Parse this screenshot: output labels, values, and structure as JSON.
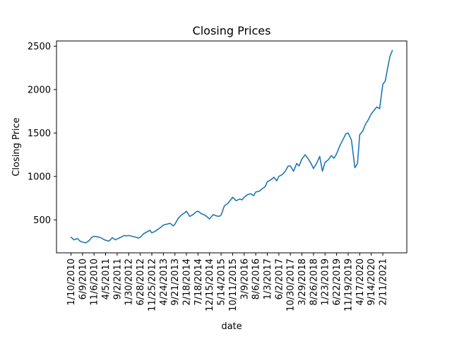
{
  "chart_data": {
    "type": "line",
    "title": "Closing Prices",
    "xlabel": "date",
    "ylabel": "Closing Price",
    "ylim": [
      120,
      2560
    ],
    "yticks": [
      500,
      1000,
      1500,
      2000,
      2500
    ],
    "xticks": [
      "1/10/2010",
      "6/9/2010",
      "11/6/2010",
      "4/5/2011",
      "9/2/2011",
      "1/30/2012",
      "6/28/2012",
      "11/25/2012",
      "4/24/2013",
      "9/21/2013",
      "2/18/2014",
      "7/18/2014",
      "12/15/2014",
      "5/14/2015",
      "10/11/2015",
      "3/9/2016",
      "8/6/2016",
      "1/3/2017",
      "6/2/2017",
      "10/30/2017",
      "3/29/2018",
      "8/26/2018",
      "1/23/2019",
      "6/22/2019",
      "11/19/2019",
      "4/17/2020",
      "9/14/2020",
      "2/11/2021"
    ],
    "grid": false,
    "series": [
      {
        "color": "#1f77b4",
        "x": [
          "1/10/2010",
          "2/20/2010",
          "4/1/2010",
          "5/15/2010",
          "6/9/2010",
          "7/20/2010",
          "9/1/2010",
          "10/10/2010",
          "11/6/2010",
          "12/20/2010",
          "2/1/2011",
          "3/10/2011",
          "4/5/2011",
          "5/20/2011",
          "7/1/2011",
          "8/10/2011",
          "9/2/2011",
          "10/20/2011",
          "12/1/2011",
          "1/5/2012",
          "1/30/2012",
          "3/15/2012",
          "5/1/2012",
          "6/1/2012",
          "6/28/2012",
          "8/10/2012",
          "9/20/2012",
          "11/1/2012",
          "11/25/2012",
          "1/10/2013",
          "2/20/2013",
          "3/30/2013",
          "4/24/2013",
          "6/10/2013",
          "7/20/2013",
          "9/1/2013",
          "9/21/2013",
          "11/5/2013",
          "12/20/2013",
          "1/25/2014",
          "2/18/2014",
          "4/1/2014",
          "5/15/2014",
          "6/20/2014",
          "7/18/2014",
          "9/1/2014",
          "10/15/2014",
          "11/20/2014",
          "12/15/2014",
          "2/1/2015",
          "3/15/2015",
          "4/20/2015",
          "5/14/2015",
          "6/25/2015",
          "8/10/2015",
          "9/15/2015",
          "10/11/2015",
          "11/25/2015",
          "1/10/2016",
          "2/10/2016",
          "3/9/2016",
          "4/20/2016",
          "6/1/2016",
          "7/10/2016",
          "8/6/2016",
          "9/20/2016",
          "11/1/2016",
          "12/5/2016",
          "1/3/2017",
          "2/15/2017",
          "3/30/2017",
          "5/5/2017",
          "6/2/2017",
          "7/15/2017",
          "8/25/2017",
          "10/1/2017",
          "10/30/2017",
          "12/10/2017",
          "1/20/2018",
          "2/20/2018",
          "3/29/2018",
          "5/10/2018",
          "6/20/2018",
          "7/25/2018",
          "8/26/2018",
          "10/5/2018",
          "11/15/2018",
          "12/20/2018",
          "1/23/2019",
          "3/5/2019",
          "4/15/2019",
          "5/20/2019",
          "6/22/2019",
          "8/1/2019",
          "9/10/2019",
          "10/20/2019",
          "11/19/2019",
          "1/1/2020",
          "2/15/2020",
          "3/20/2020",
          "4/17/2020",
          "5/25/2020",
          "7/1/2020",
          "8/5/2020",
          "9/14/2020",
          "10/20/2020",
          "11/25/2020",
          "1/1/2021",
          "2/11/2021",
          "3/15/2021",
          "4/15/2021",
          "5/15/2021",
          "6/15/2021"
        ],
        "values": [
          300,
          270,
          285,
          250,
          245,
          235,
          260,
          300,
          310,
          305,
          295,
          275,
          265,
          255,
          295,
          270,
          280,
          300,
          320,
          315,
          320,
          310,
          300,
          290,
          300,
          340,
          360,
          380,
          350,
          370,
          395,
          420,
          440,
          450,
          460,
          430,
          450,
          520,
          560,
          580,
          600,
          540,
          560,
          590,
          600,
          570,
          555,
          530,
          510,
          560,
          545,
          540,
          555,
          660,
          690,
          730,
          760,
          720,
          740,
          730,
          760,
          790,
          800,
          780,
          820,
          830,
          860,
          880,
          940,
          960,
          990,
          950,
          1000,
          1020,
          1060,
          1120,
          1120,
          1060,
          1150,
          1120,
          1200,
          1250,
          1200,
          1150,
          1090,
          1150,
          1230,
          1060,
          1160,
          1190,
          1240,
          1210,
          1260,
          1350,
          1420,
          1490,
          1500,
          1420,
          1100,
          1150,
          1480,
          1520,
          1600,
          1650,
          1720,
          1760,
          1800,
          1780,
          2060,
          2100,
          2250,
          2380,
          2450
        ]
      }
    ]
  }
}
